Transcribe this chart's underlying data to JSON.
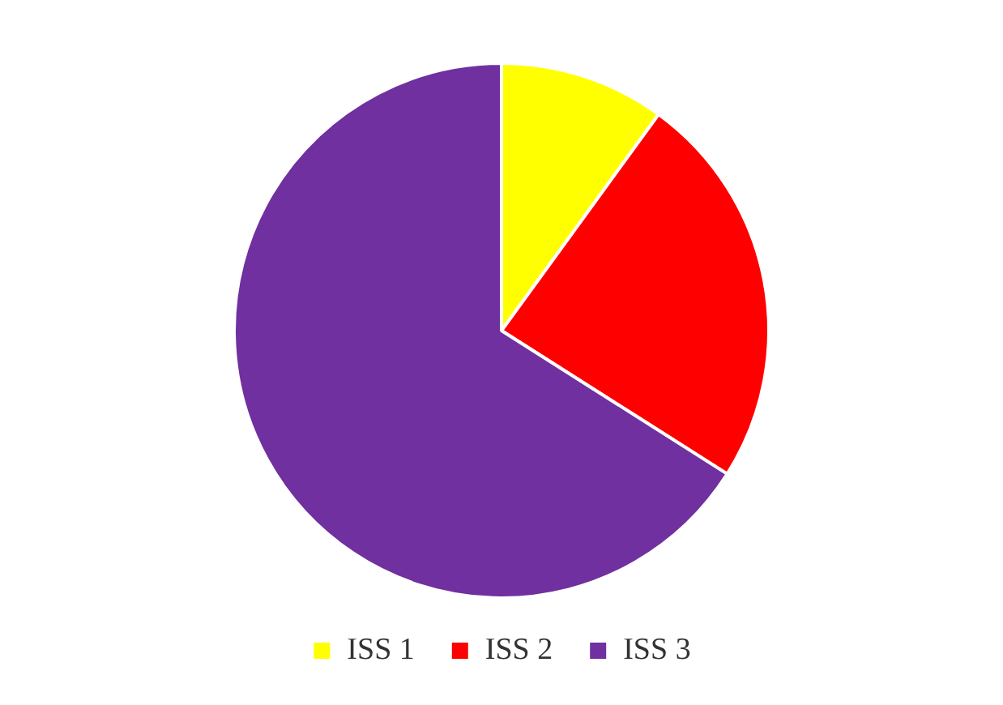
{
  "chart_data": {
    "type": "pie",
    "categories": [
      "ISS 1",
      "ISS 2",
      "ISS 3"
    ],
    "values": [
      10,
      24,
      66
    ],
    "colors": [
      "#ffff00",
      "#ff0000",
      "#7030a0"
    ],
    "legend": "bottom"
  }
}
